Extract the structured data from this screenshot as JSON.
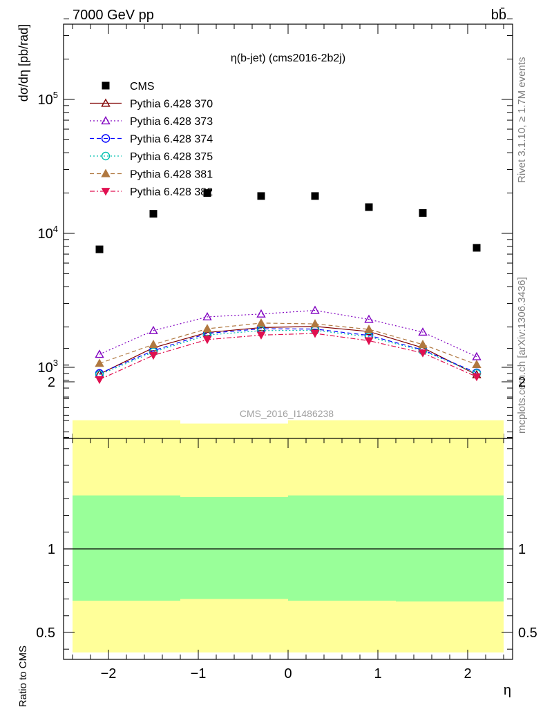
{
  "header": {
    "energy_label": "7000 GeV pp",
    "process_label": "bb̄",
    "rivet_label": "Rivet 3.1.10, ≥ 1.7M events",
    "mcplots_label": "mcplots.cern.ch [arXiv:1306.3436]"
  },
  "chart_data": [
    {
      "type": "scatter",
      "title": "η(b-jet) (cms2016-2b2j)",
      "analysis_label": "CMS_2016_I1486238",
      "xlabel": "η",
      "ylabel": "dσ/dη [pb/rad]",
      "yscale": "log",
      "xlim": [
        -2.5,
        2.5
      ],
      "ylim": [
        300,
        400000
      ],
      "ytick_labels": [
        "10^3",
        "10^4",
        "10^5"
      ],
      "legend_position": "top-left",
      "x": [
        -2.1,
        -1.5,
        -0.9,
        -0.3,
        0.3,
        0.9,
        1.5,
        2.1
      ],
      "series": [
        {
          "name": "CMS",
          "color": "#000000",
          "marker": "square",
          "line": "none",
          "values": [
            7600,
            14000,
            20000,
            19000,
            19000,
            15700,
            14200,
            7800
          ]
        },
        {
          "name": "Pythia 6.428 370",
          "color": "#800000",
          "marker": "triangle-open",
          "line": "solid",
          "values": [
            890,
            1400,
            1820,
            1980,
            2020,
            1850,
            1400,
            880
          ]
        },
        {
          "name": "Pythia 6.428 373",
          "color": "#8000c0",
          "marker": "triangle-open",
          "line": "dotted",
          "values": [
            1250,
            1880,
            2380,
            2500,
            2660,
            2280,
            1830,
            1200
          ]
        },
        {
          "name": "Pythia 6.428 374",
          "color": "#0000ff",
          "marker": "circle-open",
          "line": "dashed",
          "values": [
            900,
            1330,
            1790,
            1940,
            1930,
            1730,
            1350,
            910
          ]
        },
        {
          "name": "Pythia 6.428 375",
          "color": "#00c0b0",
          "marker": "circle-open",
          "line": "dotted",
          "values": [
            880,
            1300,
            1740,
            1880,
            1890,
            1690,
            1330,
            900
          ]
        },
        {
          "name": "Pythia 6.428 381",
          "color": "#b07840",
          "marker": "triangle-filled",
          "line": "dashed",
          "values": [
            1070,
            1480,
            1940,
            2140,
            2110,
            1920,
            1480,
            1050
          ]
        },
        {
          "name": "Pythia 6.428 382",
          "color": "#e01050",
          "marker": "triangle-down-filled",
          "line": "dashdot",
          "values": [
            810,
            1230,
            1610,
            1740,
            1790,
            1580,
            1280,
            850
          ]
        }
      ]
    },
    {
      "type": "area",
      "ylabel": "Ratio to CMS",
      "xlabel": "η",
      "xlim": [
        -2.5,
        2.5
      ],
      "ylim": [
        0.35,
        2.25
      ],
      "yticks": [
        0.5,
        1,
        2
      ],
      "xticks": [
        -2,
        -1,
        0,
        1,
        2
      ],
      "reference_line": 1,
      "bin_edges": [
        -2.4,
        -1.2,
        0,
        1.2,
        2.4
      ],
      "band_outer": {
        "color": "#ffff99",
        "low": [
          0.38,
          0.38,
          0.38,
          0.38
        ],
        "high": [
          1.77,
          1.75,
          1.77,
          1.77
        ]
      },
      "band_inner": {
        "color": "#99ff99",
        "low": [
          0.69,
          0.7,
          0.69,
          0.685
        ],
        "high": [
          1.32,
          1.31,
          1.32,
          1.32
        ]
      }
    }
  ]
}
